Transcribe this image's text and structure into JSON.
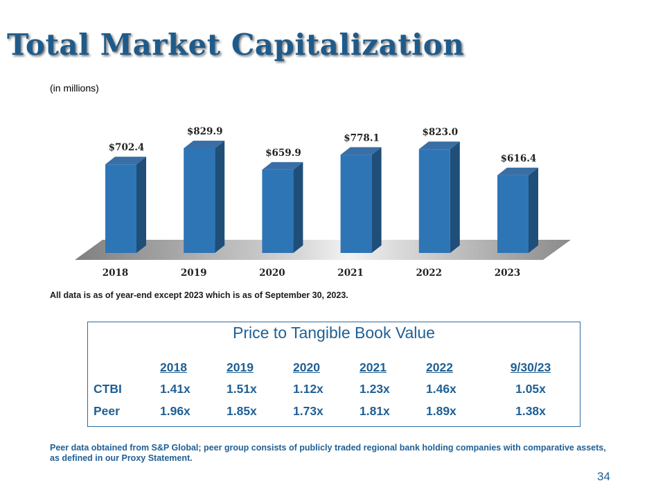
{
  "slide": {
    "title": "Total Market Capitalization",
    "units_note": "(in millions)",
    "footnote": "All data is as of year-end except 2023 which is as of September 30, 2023.",
    "peer_note": "Peer data obtained from S&P Global; peer group consists of publicly traded regional bank holding companies with comparative assets, as defined in our Proxy Statement.",
    "page_number": "34"
  },
  "colors": {
    "title": "#1f5b8a",
    "bar_front": "#2e75b6",
    "bar_side": "#1f4e79",
    "bar_top": "#3a6fa5",
    "table_text": "#1f5f94"
  },
  "chart_data": {
    "type": "bar",
    "categories": [
      "2018",
      "2019",
      "2020",
      "2021",
      "2022",
      "2023"
    ],
    "values": [
      702.4,
      829.9,
      659.9,
      778.1,
      823.0,
      616.4
    ],
    "labels": [
      "$702.4",
      "$829.9",
      "$659.9",
      "$778.1",
      "$823.0",
      "$616.4"
    ],
    "ylim": [
      0,
      900
    ],
    "title": "",
    "xlabel": "",
    "ylabel": "",
    "grid": false,
    "legend": "none",
    "style": "3d-columns"
  },
  "ptbv": {
    "title": "Price to Tangible Book Value",
    "columns": [
      "2018",
      "2019",
      "2020",
      "2021",
      "2022",
      "9/30/23"
    ],
    "rows": [
      {
        "label": "CTBI",
        "values": [
          "1.41x",
          "1.51x",
          "1.12x",
          "1.23x",
          "1.46x",
          "1.05x"
        ]
      },
      {
        "label": "Peer",
        "values": [
          "1.96x",
          "1.85x",
          "1.73x",
          "1.81x",
          "1.89x",
          "1.38x"
        ]
      }
    ]
  }
}
